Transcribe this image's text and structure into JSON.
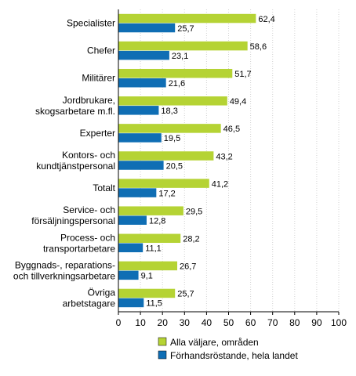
{
  "chart_data": {
    "type": "bar",
    "orientation": "horizontal",
    "categories": [
      "Specialister",
      "Chefer",
      "Militärer",
      "Jordbrukare,\nskogsarbetare m.fl.",
      "Experter",
      "Kontors- och\nkundtjänstpersonal",
      "Totalt",
      "Service- och\nförsäljningspersonal",
      "Process- och\ntransportarbetare",
      "Byggnads-, reparations-\noch tillverkningsarbetare",
      "Övriga\narbetstagare"
    ],
    "series": [
      {
        "name": "Alla väljare, områden",
        "color": "#b5d334",
        "values": [
          62.4,
          58.6,
          51.7,
          49.4,
          46.5,
          43.2,
          41.2,
          29.5,
          28.2,
          26.7,
          25.7
        ],
        "labels": [
          "62,4",
          "58,6",
          "51,7",
          "49,4",
          "46,5",
          "43,2",
          "41,2",
          "29,5",
          "28,2",
          "26,7",
          "25,7"
        ]
      },
      {
        "name": "Förhandsröstande, hela landet",
        "color": "#0f6eb4",
        "values": [
          25.7,
          23.1,
          21.6,
          18.3,
          19.5,
          20.5,
          17.2,
          12.8,
          11.1,
          9.1,
          11.5
        ],
        "labels": [
          "25,7",
          "23,1",
          "21,6",
          "18,3",
          "19,5",
          "20,5",
          "17,2",
          "12,8",
          "11,1",
          "9,1",
          "11,5"
        ]
      }
    ],
    "xlim": [
      0,
      100
    ],
    "xticks": [
      "0",
      "10",
      "20",
      "30",
      "40",
      "50",
      "60",
      "70",
      "80",
      "90",
      "100"
    ],
    "grid": true,
    "legend_position": "bottom"
  }
}
